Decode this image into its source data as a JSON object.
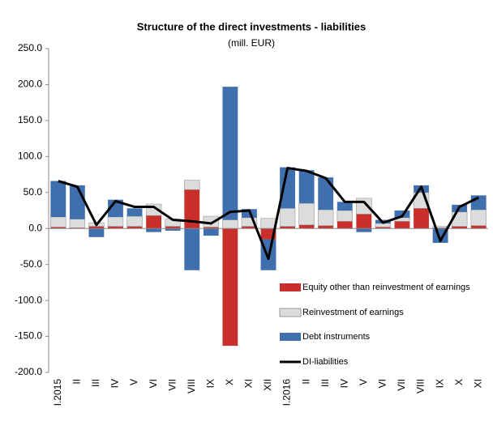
{
  "chart_data": {
    "type": "stacked_bar_line",
    "title": "Structure of the direct investments - liabilities",
    "subtitle": "(mill. EUR)",
    "categories": [
      "I.2015",
      "II",
      "III",
      "IV",
      "V",
      "VI",
      "VII",
      "VIII",
      "IX",
      "X",
      "XI",
      "XII",
      "I.2016",
      "II",
      "III",
      "IV",
      "V",
      "VI",
      "VII",
      "VIII",
      "IX",
      "X",
      "XI"
    ],
    "series": [
      {
        "name": "Equity other  than reinvestment of earnings",
        "color": "#c9302c",
        "values": [
          2,
          1,
          3,
          3,
          3,
          18,
          3,
          54,
          2,
          -163,
          3,
          -15,
          3,
          5,
          4,
          10,
          20,
          2,
          10,
          28,
          1,
          3,
          4
        ]
      },
      {
        "name": "Reinvestment of earnings",
        "color": "#dcdcdc",
        "values": [
          14,
          12,
          5,
          13,
          14,
          16,
          10,
          13,
          15,
          12,
          12,
          14,
          25,
          30,
          22,
          15,
          22,
          5,
          5,
          22,
          2,
          20,
          22
        ]
      },
      {
        "name": "Debt instruments",
        "color": "#3f6fad",
        "values": [
          50,
          47,
          -12,
          24,
          11,
          -5,
          -3,
          -58,
          -10,
          185,
          12,
          -43,
          57,
          46,
          45,
          12,
          -5,
          5,
          10,
          10,
          -20,
          10,
          20
        ]
      }
    ],
    "line": {
      "name": "DI-liabilities",
      "color": "#000000",
      "values": [
        66,
        58,
        5,
        38,
        30,
        30,
        12,
        10,
        7,
        23,
        25,
        -42,
        84,
        80,
        70,
        37,
        37,
        8,
        17,
        58,
        -17,
        30,
        43
      ]
    },
    "ylim": [
      -200,
      250
    ],
    "yticks": [
      {
        "value": 250,
        "label": "250.0"
      },
      {
        "value": 200,
        "label": "200.0"
      },
      {
        "value": 150,
        "label": "150.0"
      },
      {
        "value": 100,
        "label": "100.0"
      },
      {
        "value": 50,
        "label": "50.0"
      },
      {
        "value": 0,
        "label": "0.0"
      },
      {
        "value": -50,
        "label": "-50.0"
      },
      {
        "value": -100,
        "label": "-100.0"
      },
      {
        "value": -150,
        "label": "-150.0"
      },
      {
        "value": -200,
        "label": "-200.0"
      }
    ],
    "legend": "lower right"
  }
}
